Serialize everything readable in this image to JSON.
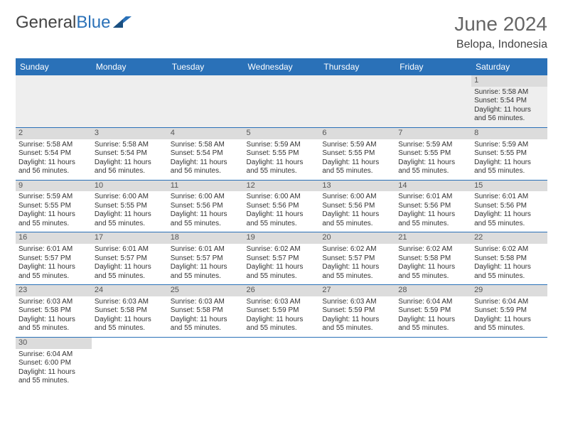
{
  "logo": {
    "text1": "General",
    "text2": "Blue"
  },
  "title": "June 2024",
  "location": "Belopa, Indonesia",
  "header_color": "#2a71b8",
  "row_divider_color": "#2a71b8",
  "alt_row_bg": "#eeeeee",
  "daynum_bg": "#dcdcdc",
  "weekdays": [
    "Sunday",
    "Monday",
    "Tuesday",
    "Wednesday",
    "Thursday",
    "Friday",
    "Saturday"
  ],
  "weeks": [
    [
      null,
      null,
      null,
      null,
      null,
      null,
      {
        "d": "1",
        "sr": "5:58 AM",
        "ss": "5:54 PM",
        "dl": "11 hours and 56 minutes."
      }
    ],
    [
      {
        "d": "2",
        "sr": "5:58 AM",
        "ss": "5:54 PM",
        "dl": "11 hours and 56 minutes."
      },
      {
        "d": "3",
        "sr": "5:58 AM",
        "ss": "5:54 PM",
        "dl": "11 hours and 56 minutes."
      },
      {
        "d": "4",
        "sr": "5:58 AM",
        "ss": "5:54 PM",
        "dl": "11 hours and 56 minutes."
      },
      {
        "d": "5",
        "sr": "5:59 AM",
        "ss": "5:55 PM",
        "dl": "11 hours and 55 minutes."
      },
      {
        "d": "6",
        "sr": "5:59 AM",
        "ss": "5:55 PM",
        "dl": "11 hours and 55 minutes."
      },
      {
        "d": "7",
        "sr": "5:59 AM",
        "ss": "5:55 PM",
        "dl": "11 hours and 55 minutes."
      },
      {
        "d": "8",
        "sr": "5:59 AM",
        "ss": "5:55 PM",
        "dl": "11 hours and 55 minutes."
      }
    ],
    [
      {
        "d": "9",
        "sr": "5:59 AM",
        "ss": "5:55 PM",
        "dl": "11 hours and 55 minutes."
      },
      {
        "d": "10",
        "sr": "6:00 AM",
        "ss": "5:55 PM",
        "dl": "11 hours and 55 minutes."
      },
      {
        "d": "11",
        "sr": "6:00 AM",
        "ss": "5:56 PM",
        "dl": "11 hours and 55 minutes."
      },
      {
        "d": "12",
        "sr": "6:00 AM",
        "ss": "5:56 PM",
        "dl": "11 hours and 55 minutes."
      },
      {
        "d": "13",
        "sr": "6:00 AM",
        "ss": "5:56 PM",
        "dl": "11 hours and 55 minutes."
      },
      {
        "d": "14",
        "sr": "6:01 AM",
        "ss": "5:56 PM",
        "dl": "11 hours and 55 minutes."
      },
      {
        "d": "15",
        "sr": "6:01 AM",
        "ss": "5:56 PM",
        "dl": "11 hours and 55 minutes."
      }
    ],
    [
      {
        "d": "16",
        "sr": "6:01 AM",
        "ss": "5:57 PM",
        "dl": "11 hours and 55 minutes."
      },
      {
        "d": "17",
        "sr": "6:01 AM",
        "ss": "5:57 PM",
        "dl": "11 hours and 55 minutes."
      },
      {
        "d": "18",
        "sr": "6:01 AM",
        "ss": "5:57 PM",
        "dl": "11 hours and 55 minutes."
      },
      {
        "d": "19",
        "sr": "6:02 AM",
        "ss": "5:57 PM",
        "dl": "11 hours and 55 minutes."
      },
      {
        "d": "20",
        "sr": "6:02 AM",
        "ss": "5:57 PM",
        "dl": "11 hours and 55 minutes."
      },
      {
        "d": "21",
        "sr": "6:02 AM",
        "ss": "5:58 PM",
        "dl": "11 hours and 55 minutes."
      },
      {
        "d": "22",
        "sr": "6:02 AM",
        "ss": "5:58 PM",
        "dl": "11 hours and 55 minutes."
      }
    ],
    [
      {
        "d": "23",
        "sr": "6:03 AM",
        "ss": "5:58 PM",
        "dl": "11 hours and 55 minutes."
      },
      {
        "d": "24",
        "sr": "6:03 AM",
        "ss": "5:58 PM",
        "dl": "11 hours and 55 minutes."
      },
      {
        "d": "25",
        "sr": "6:03 AM",
        "ss": "5:58 PM",
        "dl": "11 hours and 55 minutes."
      },
      {
        "d": "26",
        "sr": "6:03 AM",
        "ss": "5:59 PM",
        "dl": "11 hours and 55 minutes."
      },
      {
        "d": "27",
        "sr": "6:03 AM",
        "ss": "5:59 PM",
        "dl": "11 hours and 55 minutes."
      },
      {
        "d": "28",
        "sr": "6:04 AM",
        "ss": "5:59 PM",
        "dl": "11 hours and 55 minutes."
      },
      {
        "d": "29",
        "sr": "6:04 AM",
        "ss": "5:59 PM",
        "dl": "11 hours and 55 minutes."
      }
    ],
    [
      {
        "d": "30",
        "sr": "6:04 AM",
        "ss": "6:00 PM",
        "dl": "11 hours and 55 minutes."
      },
      null,
      null,
      null,
      null,
      null,
      null
    ]
  ],
  "labels": {
    "sunrise": "Sunrise:",
    "sunset": "Sunset:",
    "daylight": "Daylight:"
  }
}
